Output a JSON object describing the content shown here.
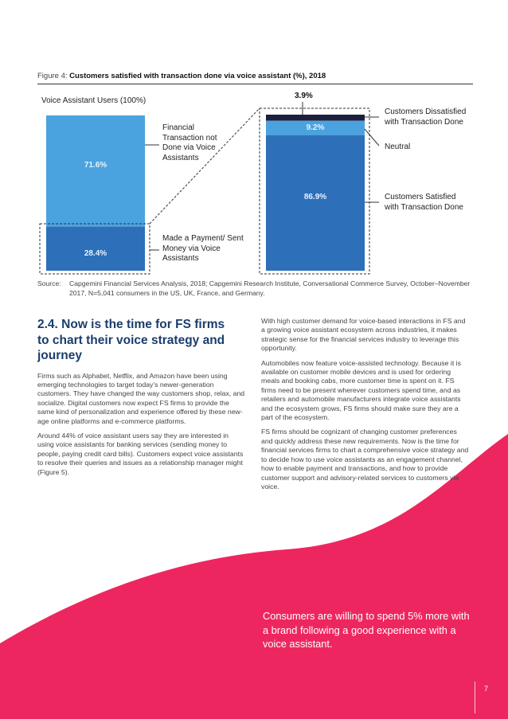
{
  "figure": {
    "label": "Figure 4:",
    "title": "Customers satisfied with transaction done via voice assistant (%), 2018"
  },
  "chart_data": {
    "type": "bar",
    "title": "Customers satisfied with transaction done via voice assistant (%), 2018",
    "left_bar": {
      "label": "Voice Assistant Users (100%)",
      "segments": [
        {
          "name": "Financial Transaction not Done via Voice Assistants",
          "value": 71.6,
          "display": "71.6%",
          "color": "#4aa3df"
        },
        {
          "name": "Made a Payment/ Sent Money via Voice Assistants",
          "value": 28.4,
          "display": "28.4%",
          "color": "#2d6fb8"
        }
      ]
    },
    "right_bar": {
      "segments": [
        {
          "name": "Customers Dissatisfied with Transaction Done",
          "value": 3.9,
          "display": "3.9%",
          "color": "#1d1f3d"
        },
        {
          "name": "Neutral",
          "value": 9.2,
          "display": "9.2%",
          "color": "#4aa3df"
        },
        {
          "name": "Customers Satisfied with Transaction Done",
          "value": 86.9,
          "display": "86.9%",
          "color": "#2d6fb8"
        }
      ]
    },
    "annotations": {
      "not_done_lines": [
        "Financial",
        "Transaction not",
        "Done via Voice",
        "Assistants"
      ],
      "payment_lines": [
        "Made a Payment/ Sent",
        "Money via Voice",
        "Assistants"
      ],
      "dissatisfied_lines": [
        "Customers Dissatisfied",
        "with Transaction Done"
      ],
      "neutral": "Neutral",
      "satisfied_lines": [
        "Customers Satisfied",
        "with Transaction Done"
      ]
    }
  },
  "source": {
    "label": "Source:",
    "text": "Capgemini Financial Services Analysis, 2018; Capgemini Research Institute, Conversational Commerce Survey, October–November 2017, N=5,041 consumers in the US, UK, France, and Germany."
  },
  "section": {
    "heading": "2.4. Now is the time for FS firms to chart their voice strategy and journey",
    "left_paragraphs": [
      "Firms such as Alphabet, Netflix, and Amazon have been using emerging technologies to target today’s newer-generation customers. They have changed the way customers shop, relax, and socialize. Digital customers now expect FS firms to provide the same kind of personalization and experience offered by these new-age online platforms and e-commerce platforms.",
      "Around 44% of voice assistant users say they are interested in using voice assistants for banking services (sending money to people, paying credit card bills). Customers expect voice assistants to resolve their queries and issues as a relationship manager might (Figure 5)."
    ],
    "right_paragraphs": [
      "With high customer demand for voice-based interactions in FS and a growing voice assistant ecosystem across industries, it makes strategic sense for the financial services industry to leverage this opportunity.",
      "Automobiles now feature voice-assisted technology. Because it is available on customer mobile devices and is used for ordering meals and booking cabs, more customer time is spent on it. FS firms need to be present wherever customers spend time, and as retailers and automobile manufacturers integrate voice assistants and the ecosystem grows, FS firms should make sure they are a part of the ecosystem.",
      "FS firms should be cognizant of changing customer preferences and quickly address these new requirements. Now is the time for financial services firms to chart a comprehensive voice strategy and to decide how to use voice assistants as an engagement channel, how to enable payment and transactions, and how to provide customer support and advisory-related services to customers via voice."
    ]
  },
  "quote": "Consumers are willing to spend 5% more with a brand following a good experience with a voice assistant.",
  "page_number": "7",
  "colors": {
    "accent_pink": "#ee2660",
    "heading_blue": "#1a3d6d"
  }
}
